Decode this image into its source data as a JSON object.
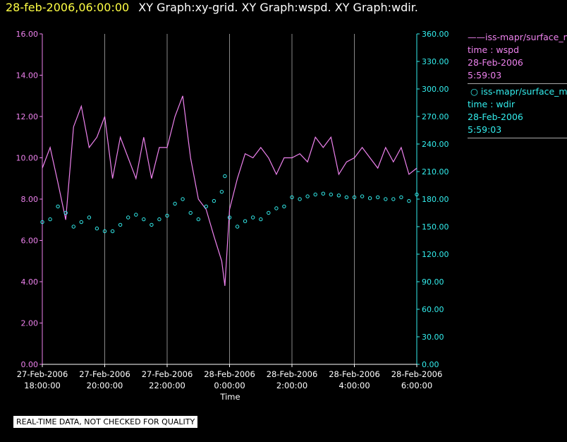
{
  "header": {
    "date": "28-feb-2006,06:00:00",
    "titles": "XY Graph:xy-grid.  XY Graph:wspd.  XY Graph:wdir."
  },
  "legend": {
    "wspd": {
      "label": "iss-mapr/surface_m",
      "line1": "time : wspd",
      "line2": "28-Feb-2006",
      "line3": "5:59:03",
      "color": "#ee82ee"
    },
    "wdir": {
      "label": "iss-mapr/surface_m",
      "line1": "time : wdir",
      "line2": "28-Feb-2006",
      "line3": "5:59:03",
      "color": "#33eeee"
    }
  },
  "disclaimer": "REAL-TIME DATA, NOT CHECKED FOR QUALITY",
  "chart_data": {
    "type": "line",
    "xlabel": "Time",
    "xlim_hours": [
      18,
      30
    ],
    "x_ticks": [
      {
        "h": 18,
        "line1": "27-Feb-2006",
        "line2": "18:00:00"
      },
      {
        "h": 20,
        "line1": "27-Feb-2006",
        "line2": "20:00:00"
      },
      {
        "h": 22,
        "line1": "27-Feb-2006",
        "line2": "22:00:00"
      },
      {
        "h": 24,
        "line1": "28-Feb-2006",
        "line2": "0:00:00"
      },
      {
        "h": 26,
        "line1": "28-Feb-2006",
        "line2": "2:00:00"
      },
      {
        "h": 28,
        "line1": "28-Feb-2006",
        "line2": "4:00:00"
      },
      {
        "h": 30,
        "line1": "28-Feb-2006",
        "line2": "6:00:00"
      }
    ],
    "y_left": {
      "lim": [
        0,
        16
      ],
      "ticks": [
        "0.00",
        "2.00",
        "4.00",
        "6.00",
        "8.00",
        "10.00",
        "12.00",
        "14.00",
        "16.00"
      ],
      "color": "#ee82ee"
    },
    "y_right": {
      "lim": [
        0,
        360
      ],
      "ticks": [
        "0.00",
        "30.00",
        "60.00",
        "90.00",
        "120.00",
        "150.00",
        "180.00",
        "210.00",
        "240.00",
        "270.00",
        "300.00",
        "330.00",
        "360.00"
      ],
      "color": "#33eeee"
    },
    "grid": "vertical",
    "series": [
      {
        "name": "wspd",
        "axis": "left",
        "style": "line",
        "color": "#ee82ee",
        "x": [
          18.0,
          18.25,
          18.5,
          18.75,
          19.0,
          19.25,
          19.5,
          19.75,
          20.0,
          20.25,
          20.5,
          20.75,
          21.0,
          21.25,
          21.5,
          21.75,
          22.0,
          22.25,
          22.5,
          22.75,
          23.0,
          23.25,
          23.5,
          23.75,
          23.85,
          24.0,
          24.25,
          24.5,
          24.75,
          25.0,
          25.25,
          25.5,
          25.75,
          26.0,
          26.25,
          26.5,
          26.75,
          27.0,
          27.25,
          27.5,
          27.75,
          28.0,
          28.25,
          28.5,
          28.75,
          29.0,
          29.25,
          29.5,
          29.75,
          30.0
        ],
        "values": [
          9.5,
          10.5,
          8.8,
          7.0,
          11.5,
          12.5,
          10.5,
          11.0,
          12.0,
          9.0,
          11.0,
          10.0,
          9.0,
          11.0,
          9.0,
          10.5,
          10.5,
          12.0,
          13.0,
          10.0,
          8.0,
          7.5,
          6.2,
          5.0,
          3.8,
          7.5,
          9.0,
          10.2,
          10.0,
          10.5,
          10.0,
          9.2,
          10.0,
          10.0,
          10.2,
          9.8,
          11.0,
          10.5,
          11.0,
          9.2,
          9.8,
          10.0,
          10.5,
          10.0,
          9.5,
          10.5,
          9.8,
          10.5,
          9.2,
          9.5
        ]
      },
      {
        "name": "wdir",
        "axis": "right",
        "style": "scatter",
        "color": "#33eeee",
        "x": [
          18.0,
          18.25,
          18.5,
          18.75,
          19.0,
          19.25,
          19.5,
          19.75,
          20.0,
          20.25,
          20.5,
          20.75,
          21.0,
          21.25,
          21.5,
          21.75,
          22.0,
          22.25,
          22.5,
          22.75,
          23.0,
          23.25,
          23.5,
          23.75,
          23.85,
          24.0,
          24.25,
          24.5,
          24.75,
          25.0,
          25.25,
          25.5,
          25.75,
          26.0,
          26.25,
          26.5,
          26.75,
          27.0,
          27.25,
          27.5,
          27.75,
          28.0,
          28.25,
          28.5,
          28.75,
          29.0,
          29.25,
          29.5,
          29.75,
          30.0
        ],
        "values": [
          155,
          158,
          172,
          165,
          150,
          155,
          160,
          148,
          145,
          145,
          152,
          160,
          163,
          158,
          152,
          158,
          162,
          175,
          180,
          165,
          158,
          172,
          178,
          188,
          205,
          160,
          150,
          156,
          160,
          158,
          165,
          170,
          172,
          182,
          180,
          183,
          185,
          186,
          185,
          184,
          182,
          182,
          183,
          181,
          182,
          180,
          180,
          182,
          178,
          185
        ]
      }
    ]
  }
}
